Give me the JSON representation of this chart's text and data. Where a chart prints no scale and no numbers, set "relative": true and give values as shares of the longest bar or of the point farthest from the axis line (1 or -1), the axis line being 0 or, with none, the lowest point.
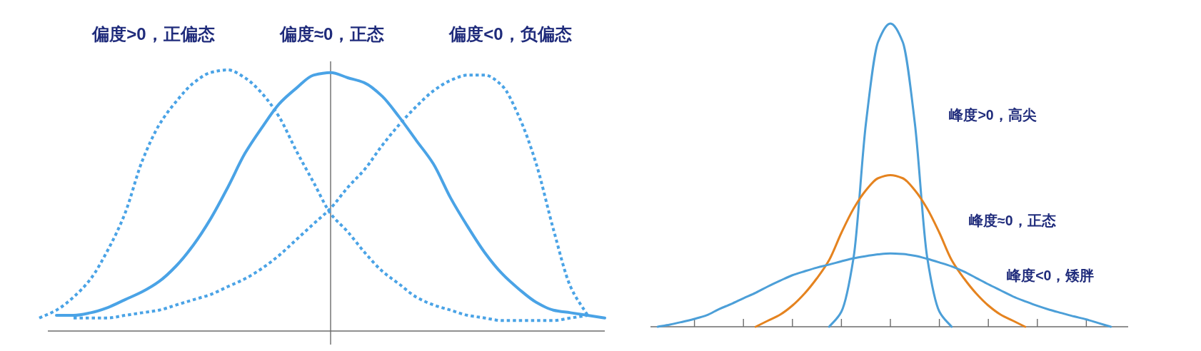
{
  "chart_data": [
    {
      "type": "line",
      "relative": true,
      "categories": [
        null,
        null,
        null,
        null,
        null,
        null,
        null,
        null,
        null,
        null,
        null,
        null,
        null,
        null,
        null,
        null,
        null,
        null,
        null,
        null,
        null,
        null,
        null,
        null,
        null,
        null,
        null,
        null,
        null,
        null,
        null,
        null,
        null,
        null,
        null
      ],
      "series": [
        {
          "name": "偏度>0，正偏态",
          "color": "#4aa3e6",
          "line_style": "dotted",
          "values": [
            0.05,
            0.08,
            0.13,
            0.2,
            0.31,
            0.45,
            0.65,
            0.79,
            0.88,
            0.95,
            0.99,
            1,
            0.97,
            0.91,
            0.82,
            0.69,
            0.57,
            0.45,
            0.38,
            0.3,
            0.23,
            0.18,
            0.13,
            0.1,
            0.08,
            0.06,
            0.05,
            0.04,
            0.04,
            0.04,
            0.04,
            0.05,
            0.06,
            null,
            null
          ]
        },
        {
          "name": "偏度≈0，正态",
          "color": "#4aa3e6",
          "line_style": "solid",
          "values": [
            null,
            0.06,
            0.06,
            0.07,
            0.09,
            0.12,
            0.15,
            0.19,
            0.25,
            0.33,
            0.43,
            0.55,
            0.68,
            0.78,
            0.87,
            0.93,
            0.98,
            0.99,
            0.97,
            0.95,
            0.9,
            0.82,
            0.73,
            0.64,
            0.51,
            0.4,
            0.3,
            0.22,
            0.16,
            0.11,
            0.08,
            0.07,
            0.06,
            0.05,
            null
          ]
        },
        {
          "name": "偏度<0，负偏态",
          "color": "#4aa3e6",
          "line_style": "dotted",
          "values": [
            null,
            null,
            0.05,
            0.05,
            0.05,
            0.06,
            0.07,
            0.08,
            0.1,
            0.12,
            0.14,
            0.17,
            0.2,
            0.24,
            0.29,
            0.35,
            0.41,
            0.47,
            0.55,
            0.62,
            0.71,
            0.79,
            0.86,
            0.92,
            0.96,
            0.98,
            0.98,
            0.94,
            0.82,
            0.64,
            0.39,
            0.17,
            0.06,
            null,
            null
          ]
        }
      ]
    },
    {
      "type": "line",
      "relative": true,
      "categories": [
        null,
        null,
        null,
        null,
        null,
        null,
        null,
        null,
        null,
        null,
        null,
        null,
        null,
        null,
        null,
        null,
        null,
        null,
        null,
        null,
        null,
        null,
        null,
        null,
        null,
        null,
        null,
        null,
        null,
        null,
        null,
        null,
        null,
        null,
        null,
        null,
        null,
        null,
        null
      ],
      "series": [
        {
          "name": "峰度>0，高尖",
          "color": "#4c9fd8",
          "values": [
            null,
            null,
            null,
            null,
            null,
            null,
            null,
            null,
            null,
            null,
            null,
            null,
            null,
            null,
            0,
            0.05,
            0.23,
            0.67,
            0.94,
            1,
            0.94,
            0.67,
            0.23,
            0.05,
            0,
            null,
            null,
            null,
            null,
            null,
            null,
            null,
            null,
            null,
            null,
            null,
            null,
            null,
            null
          ]
        },
        {
          "name": "峰度≈0，正态",
          "color": "#e5831f",
          "values": [
            null,
            null,
            null,
            null,
            null,
            null,
            null,
            null,
            0,
            0.02,
            0.04,
            0.07,
            0.11,
            0.16,
            0.22,
            0.31,
            0.39,
            0.45,
            0.49,
            0.5,
            0.49,
            0.45,
            0.39,
            0.31,
            0.22,
            0.16,
            0.11,
            0.07,
            0.04,
            0.02,
            0,
            null,
            null,
            null,
            null,
            null,
            null,
            null,
            null
          ]
        },
        {
          "name": "峰度<0，矮胖",
          "color": "#4c9fd8",
          "values": [
            0,
            0.007,
            0.016,
            0.026,
            0.038,
            0.058,
            0.075,
            0.094,
            0.112,
            0.133,
            0.152,
            0.17,
            0.183,
            0.195,
            0.205,
            0.216,
            0.226,
            0.233,
            0.239,
            0.242,
            0.24,
            0.234,
            0.224,
            0.212,
            0.199,
            0.182,
            0.161,
            0.14,
            0.12,
            0.1,
            0.084,
            0.069,
            0.056,
            0.045,
            0.034,
            0.024,
            0.012,
            0,
            null
          ]
        }
      ]
    }
  ]
}
